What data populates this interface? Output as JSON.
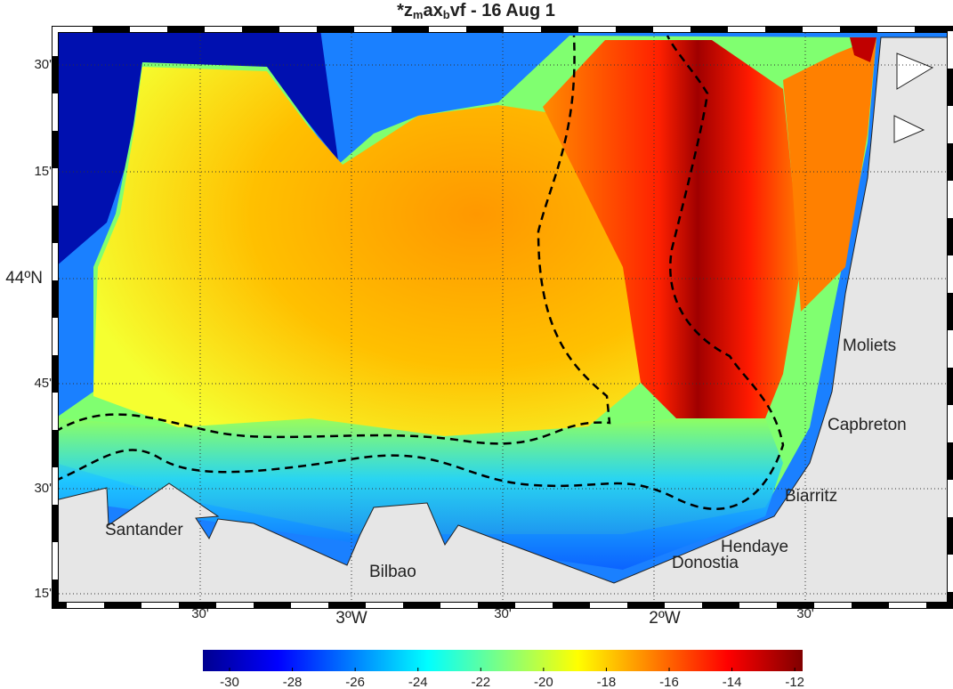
{
  "title_parts": [
    "*z",
    "m",
    "ax",
    "b",
    "vf - 16 Aug 1"
  ],
  "lat_labels": [
    "30'",
    "15'",
    "44ºN",
    "45'",
    "30'",
    "15'"
  ],
  "lon_labels": [
    "30'",
    "3ºW",
    "30'",
    "2ºW",
    "30'"
  ],
  "places": [
    "Moliets",
    "Capbreton",
    "Biarritz",
    "Hendaye",
    "Donostia",
    "Bilbao",
    "Santander"
  ],
  "colorbar": {
    "clim": [
      -30.85,
      -11.75
    ],
    "ticks": [
      -30,
      -28,
      -26,
      -24,
      -22,
      -20,
      -18,
      -16,
      -14,
      -12
    ]
  }
}
